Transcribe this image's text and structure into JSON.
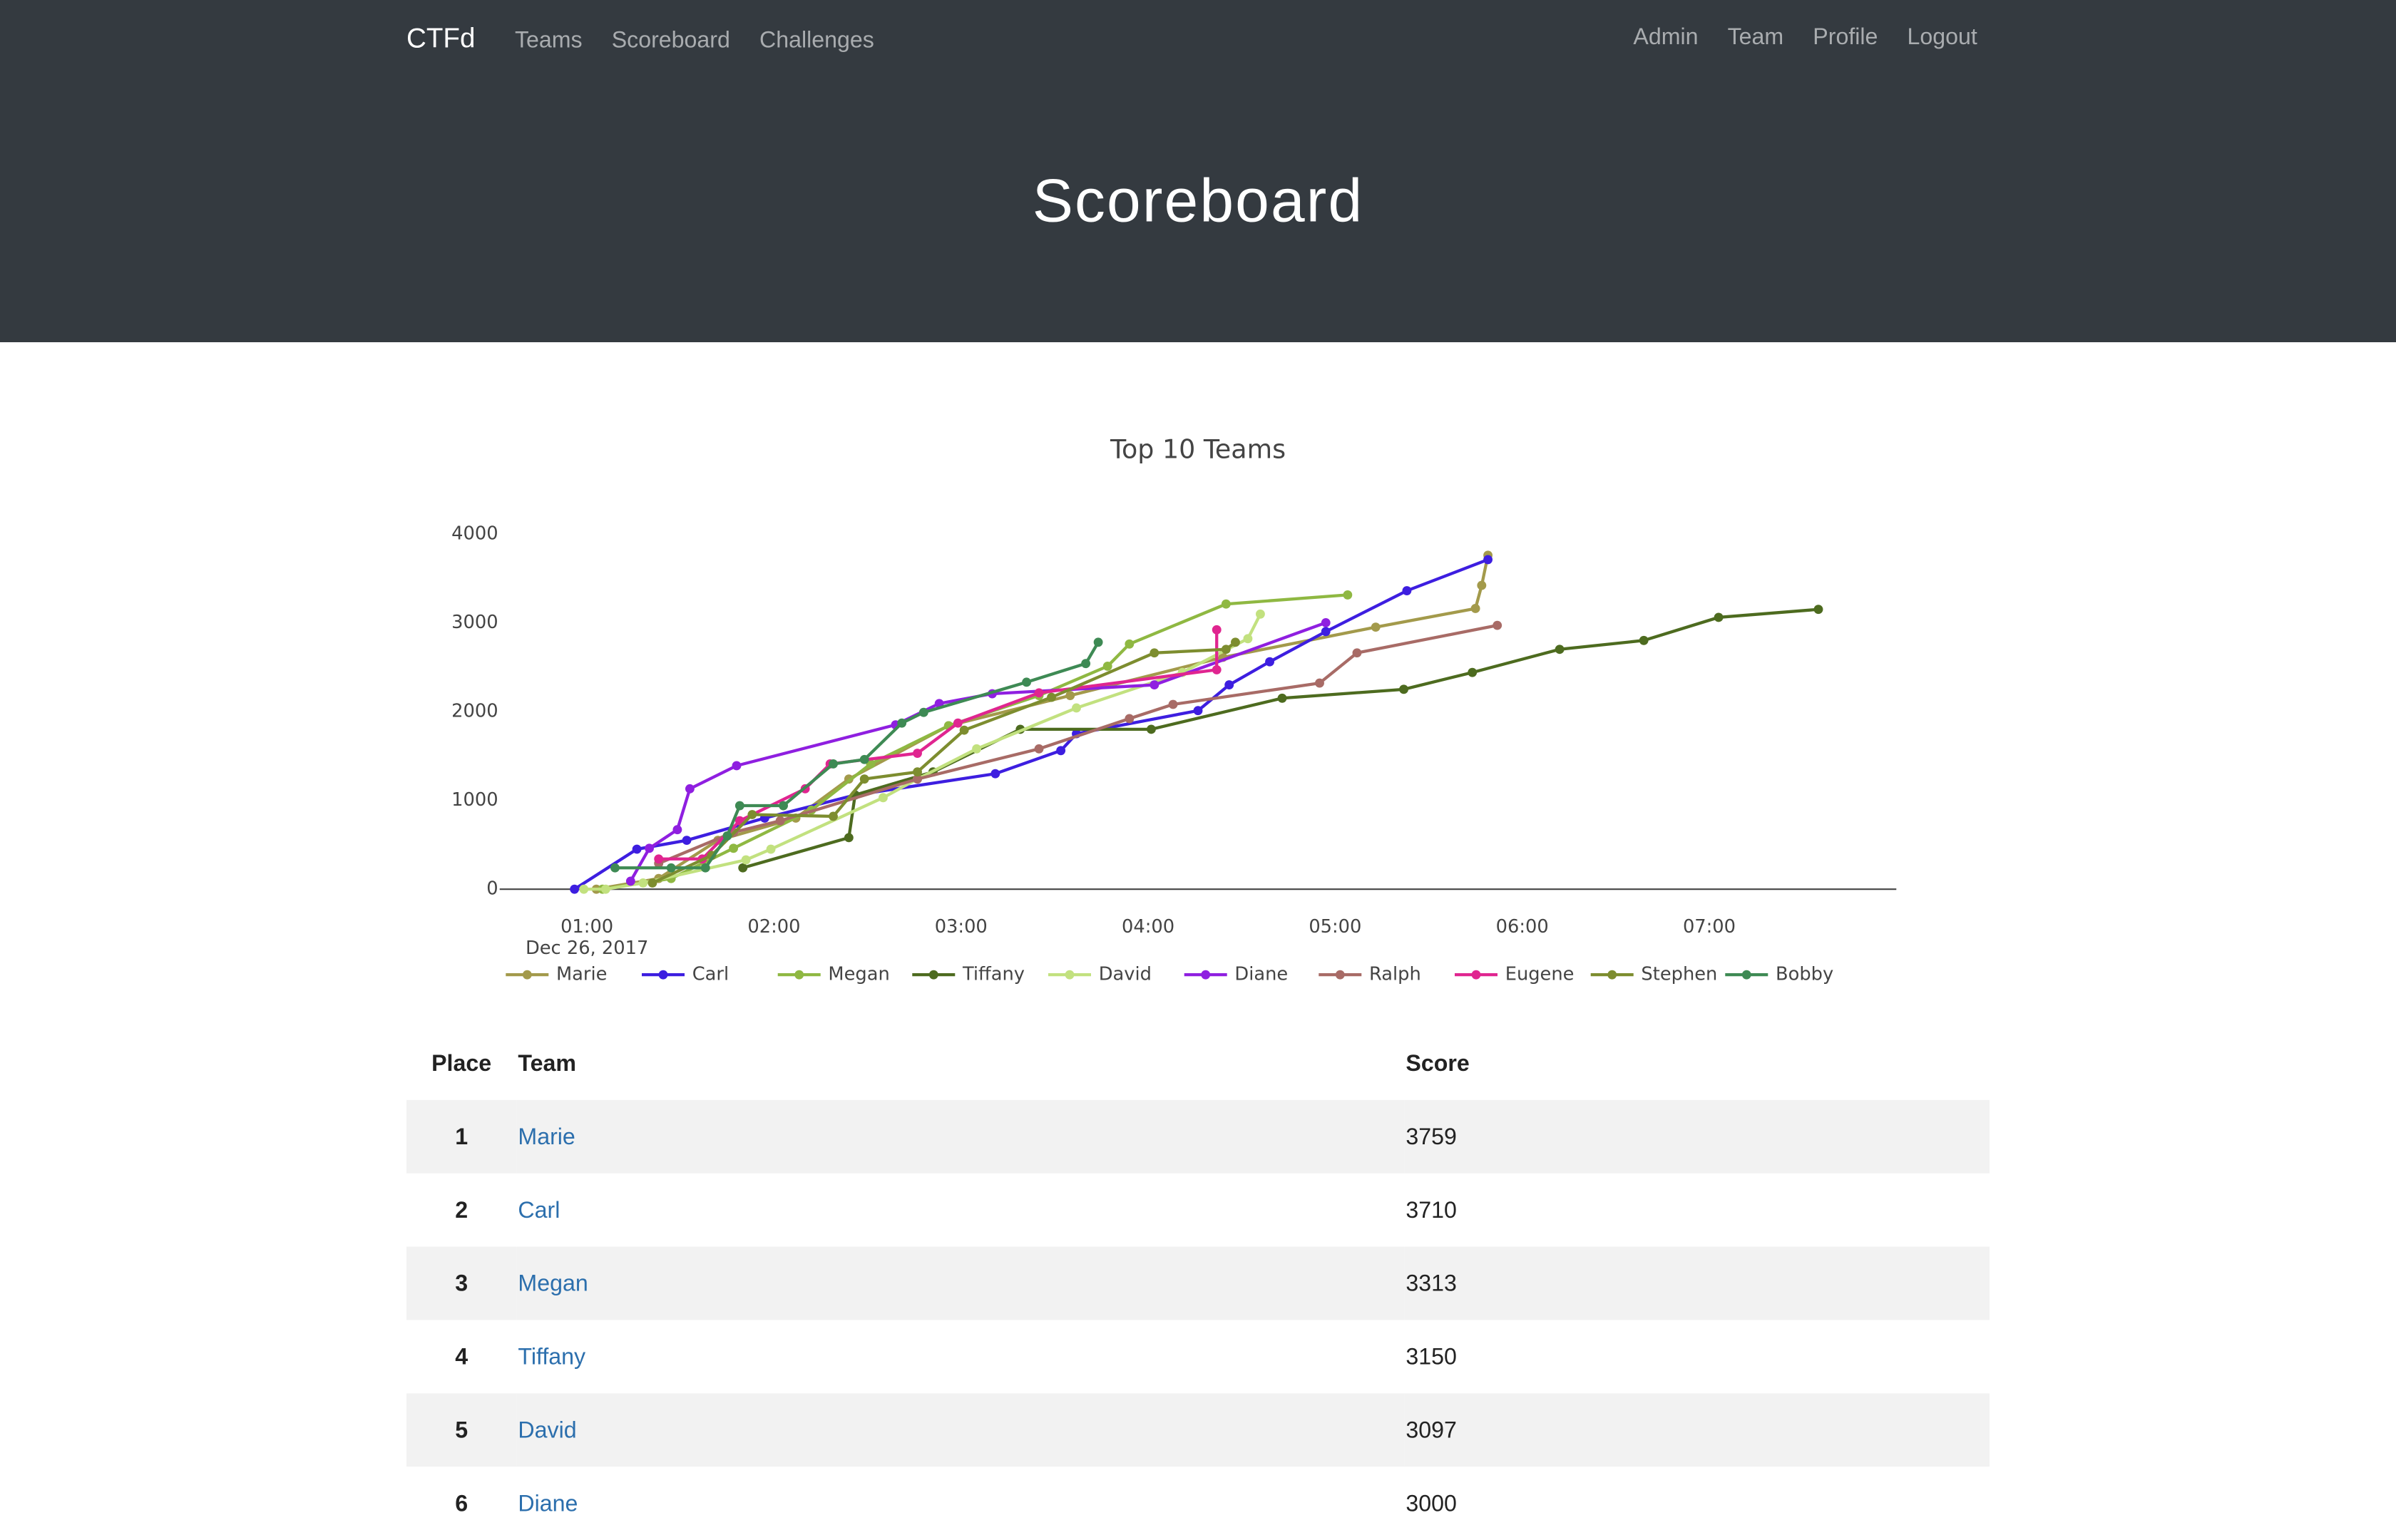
{
  "nav": {
    "brand": "CTFd",
    "left": [
      "Teams",
      "Scoreboard",
      "Challenges"
    ],
    "right": [
      "Admin",
      "Team",
      "Profile",
      "Logout"
    ]
  },
  "header": {
    "title": "Scoreboard"
  },
  "chart_data": {
    "type": "line",
    "title": "Top 10 Teams",
    "date_label": "Dec 26, 2017",
    "xlim": [
      "00:32",
      "08:00"
    ],
    "xticks": [
      "01:00",
      "02:00",
      "03:00",
      "04:00",
      "05:00",
      "06:00",
      "07:00"
    ],
    "ylim": [
      0,
      4300
    ],
    "yticks": [
      0,
      1000,
      2000,
      3000,
      4000
    ],
    "series": [
      {
        "name": "Marie",
        "color": "#a39a4b",
        "x": [
          "01:03",
          "01:23",
          "01:42",
          "02:07",
          "02:24",
          "02:56",
          "03:35",
          "04:24",
          "05:13",
          "05:45",
          "05:47",
          "05:49"
        ],
        "values": [
          0,
          120,
          550,
          800,
          1240,
          1840,
          2180,
          2610,
          2950,
          3160,
          3420,
          3759
        ]
      },
      {
        "name": "Carl",
        "color": "#3d1ee0",
        "x": [
          "00:56",
          "01:16",
          "01:32",
          "01:57",
          "02:26",
          "03:11",
          "03:32",
          "03:37",
          "04:16",
          "04:26",
          "04:39",
          "04:57",
          "05:23",
          "05:49"
        ],
        "values": [
          0,
          450,
          550,
          800,
          1060,
          1300,
          1560,
          1750,
          2010,
          2300,
          2560,
          2900,
          3360,
          3710
        ]
      },
      {
        "name": "Megan",
        "color": "#8fb842",
        "x": [
          "01:05",
          "01:27",
          "01:47",
          "02:12",
          "02:31",
          "02:56",
          "03:25",
          "03:47",
          "03:54",
          "04:25",
          "05:04"
        ],
        "values": [
          0,
          120,
          460,
          890,
          1410,
          1840,
          2180,
          2510,
          2760,
          3210,
          3313
        ]
      },
      {
        "name": "Tiffany",
        "color": "#4d6b1f",
        "x": [
          "01:50",
          "02:24",
          "02:26",
          "02:51",
          "03:19",
          "04:01",
          "04:43",
          "05:22",
          "05:44",
          "06:12",
          "06:39",
          "07:03",
          "07:35"
        ],
        "values": [
          240,
          580,
          1060,
          1320,
          1800,
          1800,
          2150,
          2250,
          2440,
          2700,
          2800,
          3060,
          3150
        ]
      },
      {
        "name": "David",
        "color": "#c2e17f",
        "x": [
          "00:59",
          "01:06",
          "01:18",
          "01:51",
          "01:59",
          "02:35",
          "02:46",
          "03:05",
          "03:37",
          "04:11",
          "04:32",
          "04:36"
        ],
        "values": [
          0,
          0,
          70,
          330,
          450,
          1030,
          1240,
          1580,
          2040,
          2440,
          2820,
          3097
        ]
      },
      {
        "name": "Diane",
        "color": "#8f1fe0",
        "x": [
          "01:14",
          "01:20",
          "01:29",
          "01:33",
          "01:48",
          "02:39",
          "02:53",
          "03:10",
          "04:02",
          "04:57"
        ],
        "values": [
          90,
          460,
          670,
          1130,
          1390,
          1850,
          2090,
          2200,
          2300,
          3000
        ]
      },
      {
        "name": "Ralph",
        "color": "#a86b66",
        "x": [
          "01:23",
          "01:47",
          "02:02",
          "02:46",
          "03:25",
          "03:54",
          "04:08",
          "04:55",
          "05:07",
          "05:52"
        ],
        "values": [
          290,
          640,
          770,
          1240,
          1580,
          1920,
          2080,
          2320,
          2660,
          2970
        ]
      },
      {
        "name": "Eugene",
        "color": "#e02590",
        "x": [
          "01:23",
          "01:37",
          "01:49",
          "02:10",
          "02:18",
          "02:46",
          "02:59",
          "03:25",
          "04:22",
          "04:22"
        ],
        "values": [
          340,
          340,
          770,
          1130,
          1410,
          1530,
          1870,
          2210,
          2470,
          2920
        ]
      },
      {
        "name": "Stephen",
        "color": "#7d8d2f",
        "x": [
          "01:21",
          "01:40",
          "01:53",
          "02:19",
          "02:29",
          "02:46",
          "03:01",
          "03:29",
          "04:02",
          "04:25",
          "04:28"
        ],
        "values": [
          70,
          380,
          840,
          820,
          1240,
          1320,
          1790,
          2160,
          2660,
          2700,
          2780
        ]
      },
      {
        "name": "Bobby",
        "color": "#3e8a54",
        "x": [
          "01:09",
          "01:27",
          "01:38",
          "01:45",
          "01:49",
          "02:03",
          "02:19",
          "02:29",
          "02:41",
          "02:48",
          "03:21",
          "03:40",
          "03:44"
        ],
        "values": [
          240,
          240,
          240,
          600,
          940,
          940,
          1410,
          1460,
          1870,
          1990,
          2330,
          2540,
          2780
        ]
      }
    ]
  },
  "table": {
    "columns": [
      "Place",
      "Team",
      "Score"
    ],
    "rows": [
      [
        "1",
        "Marie",
        "3759"
      ],
      [
        "2",
        "Carl",
        "3710"
      ],
      [
        "3",
        "Megan",
        "3313"
      ],
      [
        "4",
        "Tiffany",
        "3150"
      ],
      [
        "5",
        "David",
        "3097"
      ],
      [
        "6",
        "Diane",
        "3000"
      ]
    ]
  }
}
